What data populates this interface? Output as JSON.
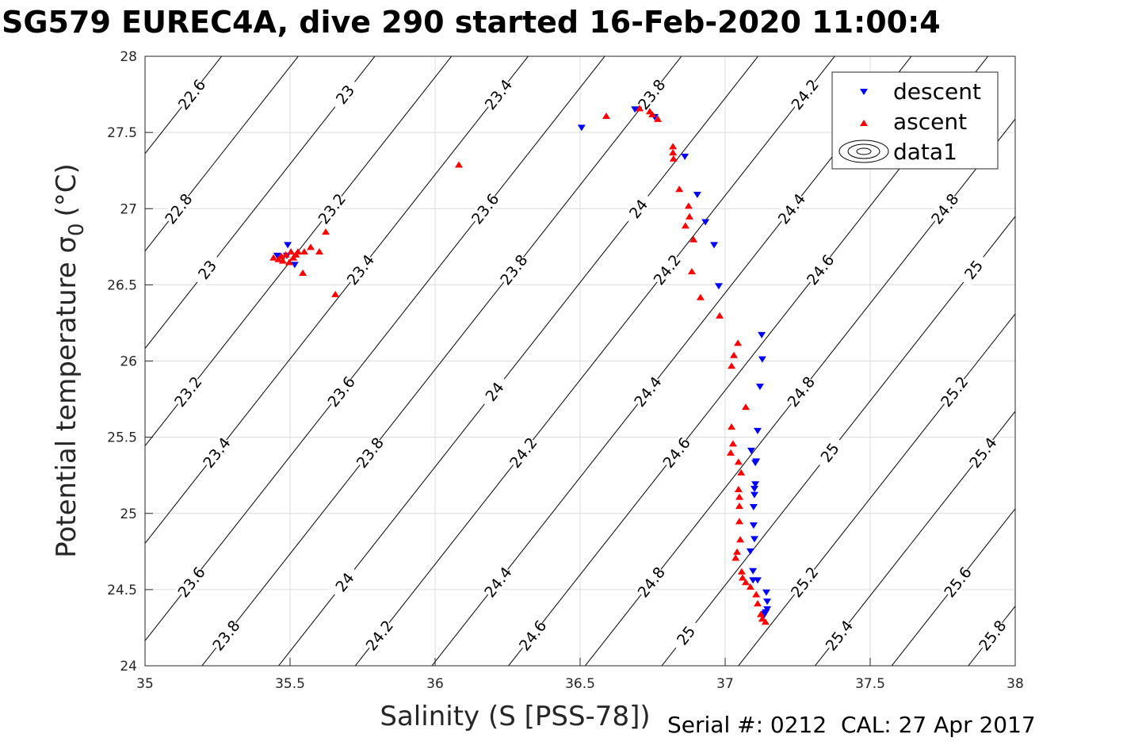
{
  "title": "SG579 EUREC4A, dive 290 started 16-Feb-2020 11:00:4",
  "footer": "Serial #: 0212  CAL: 27 Apr 2017",
  "chart_data": {
    "type": "scatter",
    "title": "SG579 EUREC4A, dive 290 started 16-Feb-2020 11:00:4",
    "xlabel": "Salinity (S [PSS-78])",
    "ylabel_main": "Potential temperature σ",
    "ylabel_sub": "0",
    "ylabel_unit": "(°C)",
    "xlim": [
      35,
      38
    ],
    "ylim": [
      24,
      28
    ],
    "xticks": [
      35,
      35.5,
      36,
      36.5,
      37,
      37.5,
      38
    ],
    "xtick_labels": [
      "35",
      "35.5",
      "36",
      "36.5",
      "37",
      "37.5",
      "38"
    ],
    "yticks": [
      24,
      24.5,
      25,
      25.5,
      26,
      26.5,
      27,
      27.5,
      28
    ],
    "ytick_labels": [
      "24",
      "24.5",
      "25",
      "25.5",
      "26",
      "26.5",
      "27",
      "27.5",
      "28"
    ],
    "grid": true,
    "legend_position": "top-right",
    "legend": [
      "descent",
      "ascent",
      "data1"
    ],
    "colors": {
      "descent": "#0000ff",
      "ascent": "#ff0000",
      "contour": "#000000",
      "grid": "#dcdcdc"
    },
    "contours": {
      "name": "data1",
      "quantity": "sigma0",
      "levels": [
        22.6,
        22.8,
        23,
        23.2,
        23.4,
        23.6,
        23.8,
        24,
        24.2,
        24.4,
        24.6,
        24.8,
        25,
        25.2,
        25.4,
        25.6,
        25.8
      ]
    },
    "series": [
      {
        "name": "descent",
        "marker": "triangle-down",
        "points": [
          [
            36.505,
            27.53
          ],
          [
            36.689,
            27.65
          ],
          [
            36.757,
            27.6
          ],
          [
            36.861,
            27.34
          ],
          [
            36.904,
            27.09
          ],
          [
            36.932,
            26.91
          ],
          [
            36.962,
            26.76
          ],
          [
            36.978,
            26.49
          ],
          [
            37.126,
            26.17
          ],
          [
            37.128,
            26.01
          ],
          [
            37.12,
            25.83
          ],
          [
            37.112,
            25.54
          ],
          [
            37.09,
            25.41
          ],
          [
            37.107,
            25.34
          ],
          [
            37.104,
            25.33
          ],
          [
            37.104,
            25.19
          ],
          [
            37.101,
            25.16
          ],
          [
            37.101,
            25.12
          ],
          [
            37.098,
            25.04
          ],
          [
            37.098,
            24.92
          ],
          [
            37.101,
            24.83
          ],
          [
            37.087,
            24.75
          ],
          [
            37.096,
            24.62
          ],
          [
            37.096,
            24.56
          ],
          [
            37.112,
            24.56
          ],
          [
            37.142,
            24.48
          ],
          [
            37.145,
            24.42
          ],
          [
            37.145,
            24.37
          ],
          [
            37.137,
            24.34
          ],
          [
            37.131,
            24.32
          ],
          [
            37.14,
            24.35
          ],
          [
            35.492,
            26.76
          ],
          [
            35.516,
            26.63
          ],
          [
            35.456,
            26.69
          ],
          [
            35.489,
            26.69
          ]
        ]
      },
      {
        "name": "ascent",
        "marker": "triangle-up",
        "points": [
          [
            36.082,
            27.29
          ],
          [
            36.59,
            27.61
          ],
          [
            36.705,
            27.66
          ],
          [
            36.74,
            27.64
          ],
          [
            36.749,
            27.62
          ],
          [
            36.768,
            27.59
          ],
          [
            36.82,
            27.41
          ],
          [
            36.82,
            27.37
          ],
          [
            36.822,
            27.33
          ],
          [
            36.842,
            27.13
          ],
          [
            36.874,
            27.02
          ],
          [
            36.877,
            26.95
          ],
          [
            36.863,
            26.89
          ],
          [
            36.891,
            26.8
          ],
          [
            36.885,
            26.59
          ],
          [
            36.915,
            26.42
          ],
          [
            36.981,
            26.3
          ],
          [
            37.044,
            26.12
          ],
          [
            37.03,
            26.04
          ],
          [
            37.022,
            25.97
          ],
          [
            37.071,
            25.7
          ],
          [
            37.022,
            25.57
          ],
          [
            37.027,
            25.46
          ],
          [
            37.019,
            25.4
          ],
          [
            37.046,
            25.34
          ],
          [
            37.055,
            25.27
          ],
          [
            37.046,
            25.16
          ],
          [
            37.049,
            25.11
          ],
          [
            37.049,
            25.05
          ],
          [
            37.049,
            24.95
          ],
          [
            37.052,
            24.83
          ],
          [
            37.041,
            24.75
          ],
          [
            37.036,
            24.71
          ],
          [
            37.057,
            24.62
          ],
          [
            37.06,
            24.58
          ],
          [
            37.071,
            24.55
          ],
          [
            37.087,
            24.52
          ],
          [
            37.107,
            24.47
          ],
          [
            37.112,
            24.41
          ],
          [
            37.123,
            24.34
          ],
          [
            37.128,
            24.31
          ],
          [
            37.139,
            24.29
          ],
          [
            35.656,
            26.44
          ],
          [
            35.623,
            26.85
          ],
          [
            35.571,
            26.75
          ],
          [
            35.549,
            26.72
          ],
          [
            35.527,
            26.72
          ],
          [
            35.503,
            26.72
          ],
          [
            35.601,
            26.72
          ],
          [
            35.544,
            26.58
          ],
          [
            35.511,
            26.68
          ],
          [
            35.47,
            26.69
          ],
          [
            35.443,
            26.68
          ],
          [
            35.475,
            26.66
          ],
          [
            35.497,
            26.65
          ],
          [
            35.485,
            26.7
          ],
          [
            35.46,
            26.67
          ],
          [
            35.52,
            26.7
          ]
        ]
      }
    ]
  }
}
